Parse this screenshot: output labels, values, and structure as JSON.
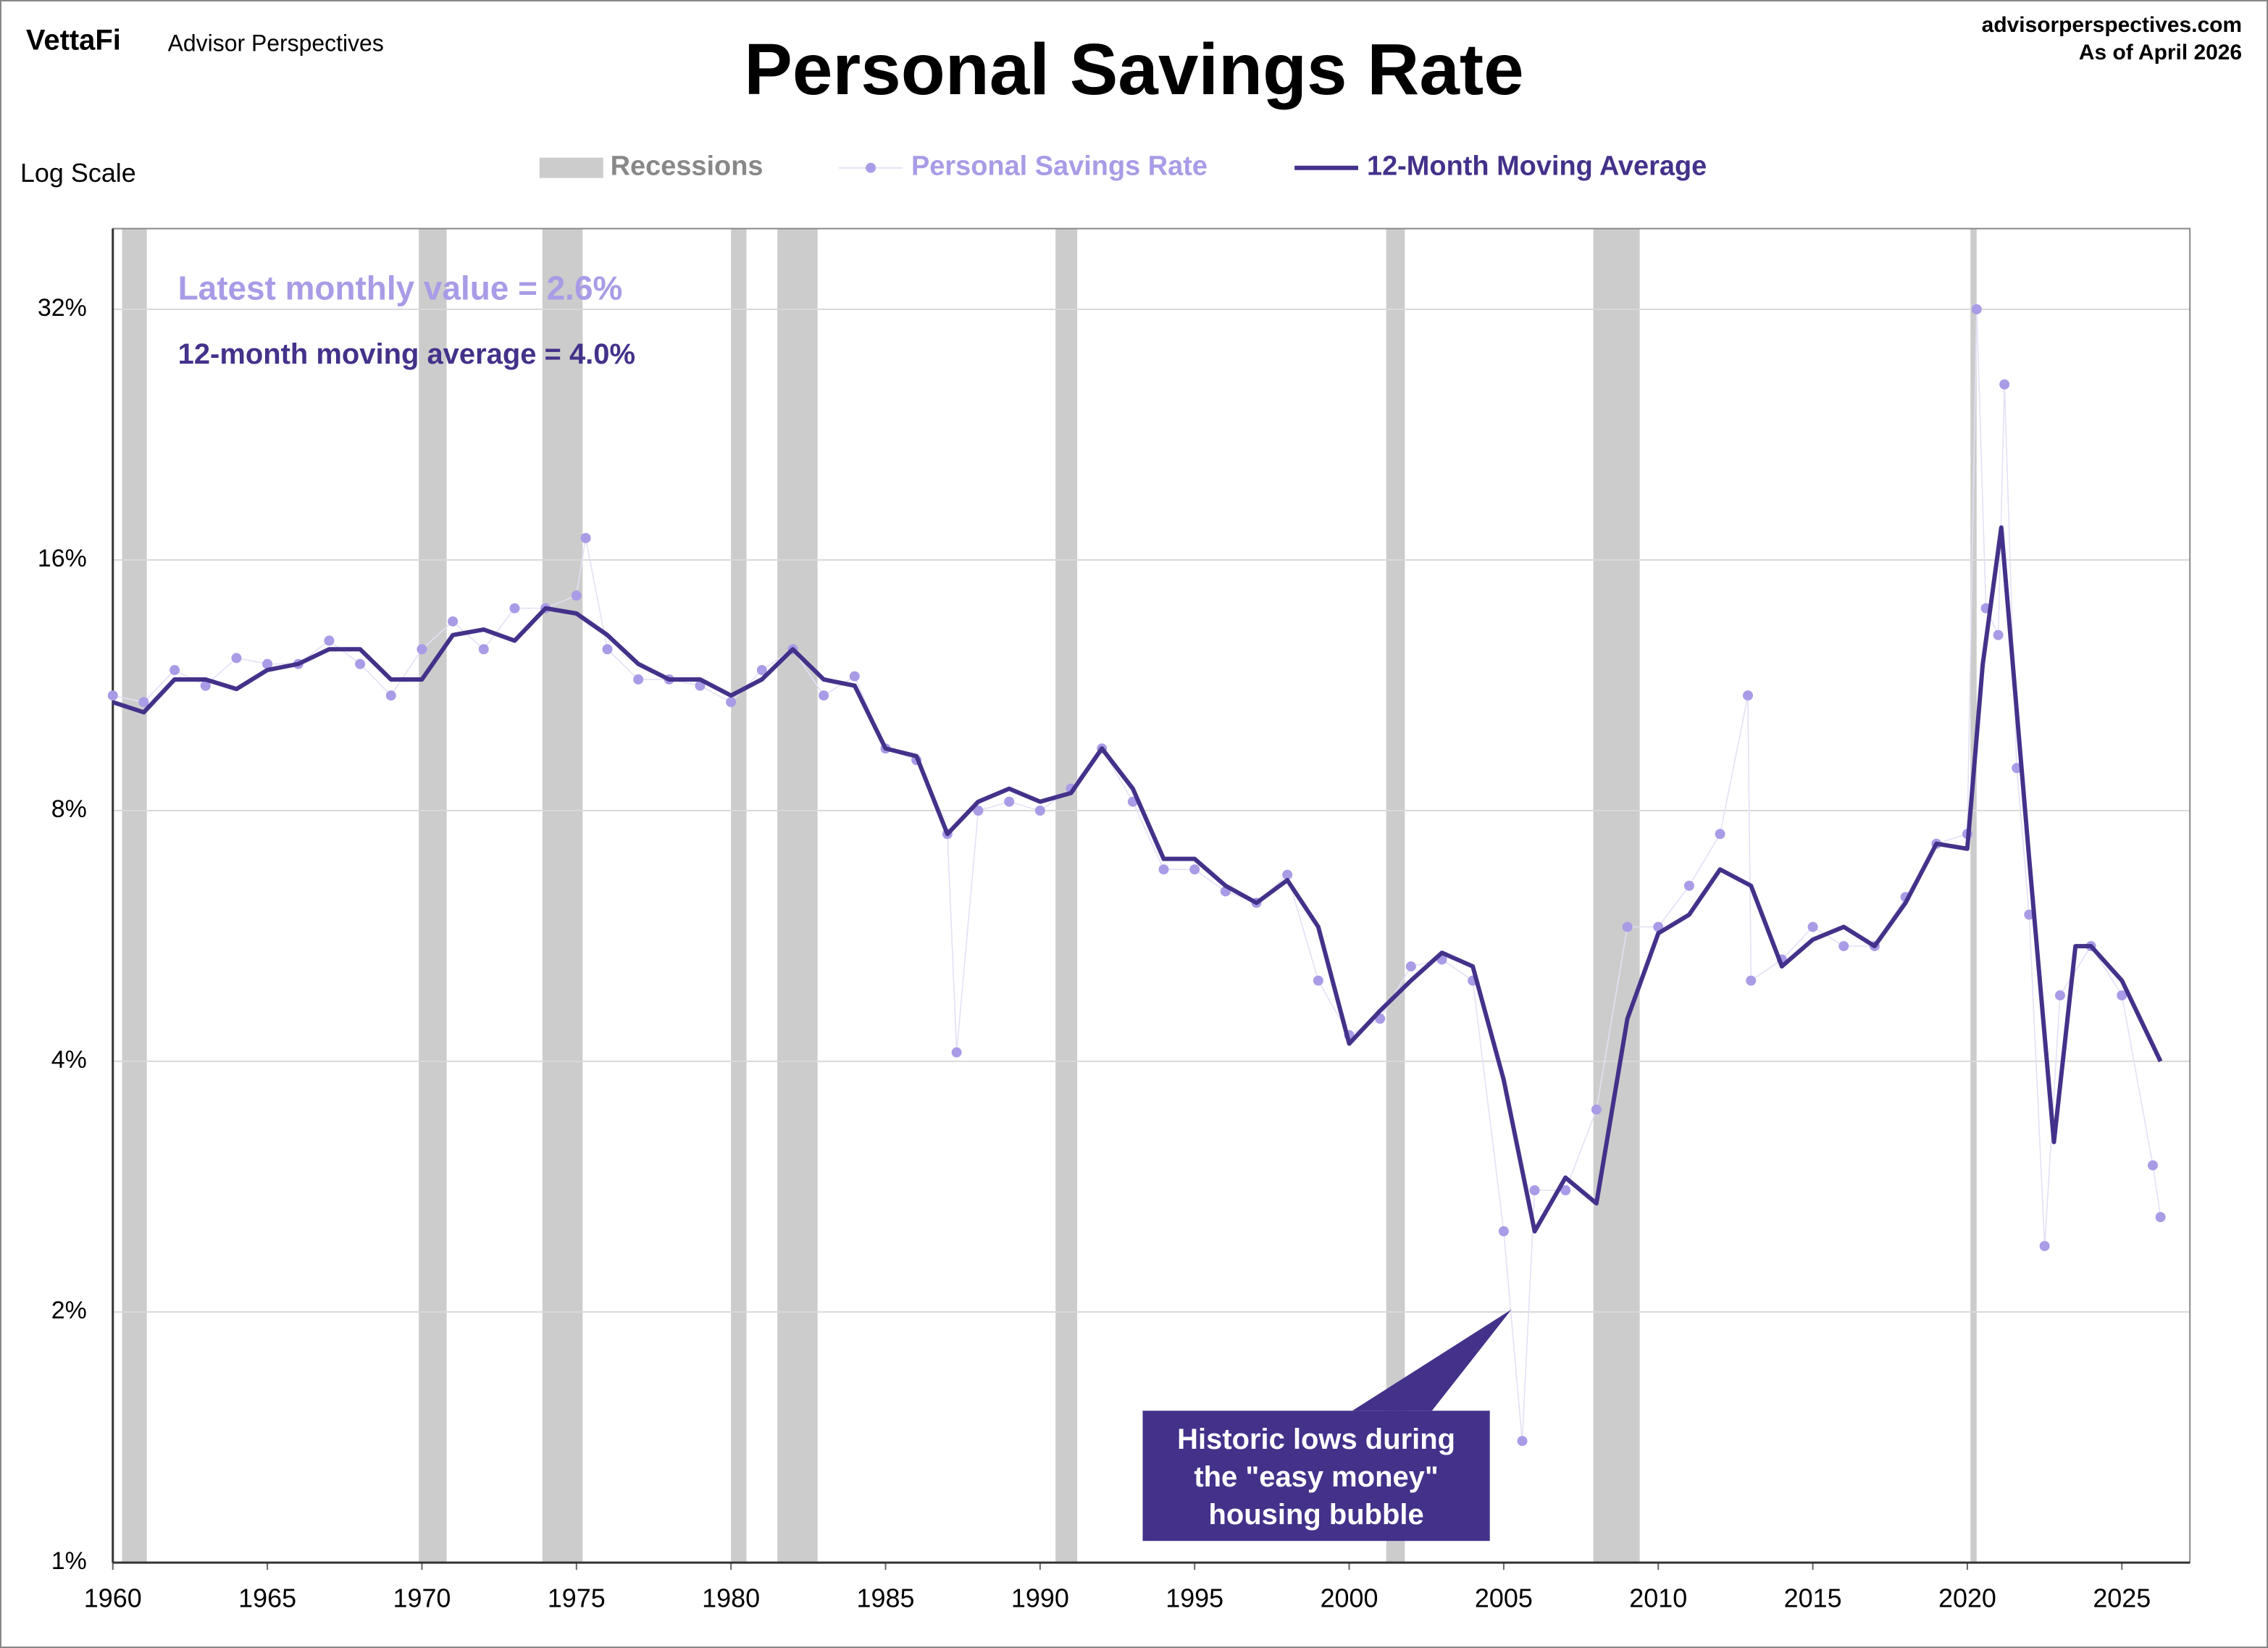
{
  "chart_data": {
    "type": "scatter-line",
    "brand": "VettaFi",
    "brand_sub": "Advisor Perspectives",
    "site": "advisorperspectives.com",
    "as_of": "As of April 2026",
    "title": "Personal Savings Rate",
    "scale_note": "Log Scale",
    "log_scale": true,
    "grid": true,
    "xlim": [
      1960,
      2027.2
    ],
    "xticks": [
      1960,
      1965,
      1970,
      1975,
      1980,
      1985,
      1990,
      1995,
      2000,
      2005,
      2010,
      2015,
      2020,
      2025
    ],
    "ylim": [
      1,
      40
    ],
    "yticks": [
      {
        "value": 1,
        "label": "1%"
      },
      {
        "value": 2,
        "label": "2%"
      },
      {
        "value": 4,
        "label": "4%"
      },
      {
        "value": 8,
        "label": "8%"
      },
      {
        "value": 16,
        "label": "16%"
      },
      {
        "value": 32,
        "label": "32%"
      }
    ],
    "recessions": {
      "name": "Recessions",
      "color": "#cccccc",
      "periods": [
        [
          1960.3,
          1961.1
        ],
        [
          1969.9,
          1970.8
        ],
        [
          1973.9,
          1975.2
        ],
        [
          1980.0,
          1980.5
        ],
        [
          1981.5,
          1982.8
        ],
        [
          1990.5,
          1991.2
        ],
        [
          2001.2,
          2001.8
        ],
        [
          2007.9,
          2009.4
        ],
        [
          2020.1,
          2020.3
        ]
      ]
    },
    "series": [
      {
        "name": "Personal Savings Rate",
        "color": "#a99be6",
        "mode": "markers",
        "x": [
          1960,
          1961,
          1962,
          1963,
          1964,
          1965,
          1966,
          1967,
          1968,
          1969,
          1970,
          1971,
          1972,
          1973,
          1974,
          1975,
          1975.3,
          1976,
          1977,
          1978,
          1979,
          1980,
          1981,
          1982,
          1983,
          1984,
          1985,
          1986,
          1987,
          1987.3,
          1988,
          1989,
          1990,
          1991,
          1992,
          1993,
          1994,
          1995,
          1996,
          1997,
          1998,
          1999,
          2000,
          2001,
          2002,
          2003,
          2004,
          2005,
          2005.6,
          2006,
          2007,
          2008,
          2009,
          2010,
          2011,
          2012,
          2012.9,
          2013,
          2014,
          2015,
          2016,
          2017,
          2018,
          2019,
          2020,
          2020.3,
          2020.6,
          2021,
          2021.2,
          2021.6,
          2022,
          2022.5,
          2023,
          2024,
          2025,
          2026,
          2026.25
        ],
        "values": [
          11.0,
          10.8,
          11.8,
          11.3,
          12.2,
          12.0,
          12.0,
          12.8,
          12.0,
          11.0,
          12.5,
          13.5,
          12.5,
          14.0,
          14.0,
          14.5,
          17.0,
          12.5,
          11.5,
          11.5,
          11.3,
          10.8,
          11.8,
          12.5,
          11.0,
          11.6,
          9.5,
          9.2,
          7.5,
          4.1,
          8.0,
          8.2,
          8.0,
          8.5,
          9.5,
          8.2,
          6.8,
          6.8,
          6.4,
          6.2,
          6.7,
          5.0,
          4.3,
          4.5,
          5.2,
          5.3,
          5.0,
          2.5,
          1.4,
          2.8,
          2.8,
          3.5,
          5.8,
          5.8,
          6.5,
          7.5,
          11.0,
          5.0,
          5.3,
          5.8,
          5.5,
          5.5,
          6.3,
          7.3,
          7.5,
          32.0,
          14.0,
          13.0,
          26.0,
          9.0,
          6.0,
          2.4,
          4.8,
          5.5,
          4.8,
          3.0,
          2.6
        ]
      },
      {
        "name": "12-Month Moving Average",
        "color": "#44318a",
        "mode": "line",
        "x": [
          1960,
          1961,
          1962,
          1963,
          1964,
          1965,
          1966,
          1967,
          1968,
          1969,
          1970,
          1971,
          1972,
          1973,
          1974,
          1975,
          1976,
          1977,
          1978,
          1979,
          1980,
          1981,
          1982,
          1983,
          1984,
          1985,
          1986,
          1987,
          1988,
          1989,
          1990,
          1991,
          1992,
          1993,
          1994,
          1995,
          1996,
          1997,
          1998,
          1999,
          2000,
          2001,
          2002,
          2003,
          2004,
          2005,
          2006,
          2007,
          2008,
          2009,
          2010,
          2011,
          2012,
          2013,
          2014,
          2015,
          2016,
          2017,
          2018,
          2019,
          2020,
          2020.5,
          2021.1,
          2022,
          2022.8,
          2023.5,
          2024,
          2025,
          2026.25
        ],
        "values": [
          10.8,
          10.5,
          11.5,
          11.5,
          11.2,
          11.8,
          12.0,
          12.5,
          12.5,
          11.5,
          11.5,
          13.0,
          13.2,
          12.8,
          14.0,
          13.8,
          13.0,
          12.0,
          11.5,
          11.5,
          11.0,
          11.5,
          12.5,
          11.5,
          11.3,
          9.5,
          9.3,
          7.5,
          8.2,
          8.5,
          8.2,
          8.4,
          9.5,
          8.5,
          7.0,
          7.0,
          6.5,
          6.2,
          6.6,
          5.8,
          4.2,
          4.6,
          5.0,
          5.4,
          5.2,
          3.8,
          2.5,
          2.9,
          2.7,
          4.5,
          5.7,
          6.0,
          6.8,
          6.5,
          5.2,
          5.6,
          5.8,
          5.5,
          6.2,
          7.3,
          7.2,
          12.0,
          17.5,
          7.0,
          3.2,
          5.5,
          5.5,
          5.0,
          4.0
        ]
      }
    ],
    "annotations": {
      "latest": "Latest monthly value = 2.6%",
      "average": "12-month moving average = 4.0%",
      "bubble": [
        "Historic lows during",
        "the \"easy money\"",
        "housing bubble"
      ]
    }
  }
}
